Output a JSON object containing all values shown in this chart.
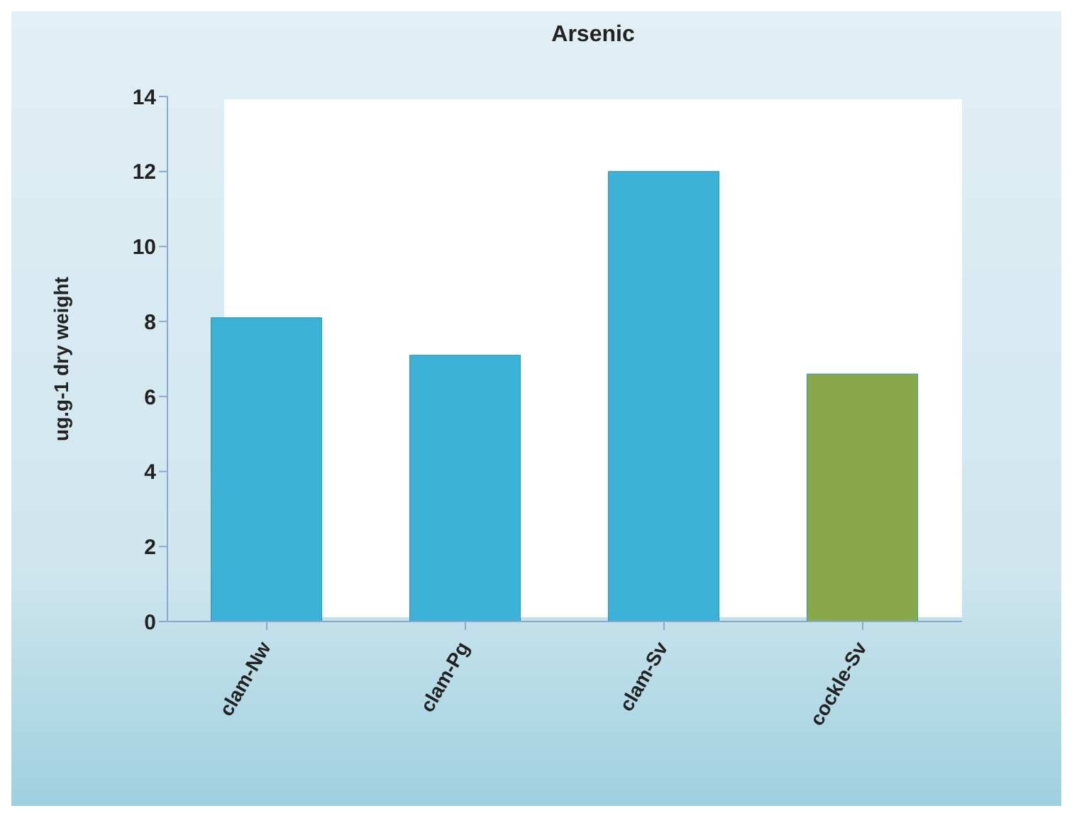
{
  "chart_data": {
    "type": "bar",
    "title": "Arsenic",
    "ylabel": "ug.g-1 dry weight",
    "categories": [
      "clam-Nw",
      "clam-Pg",
      "clam-Sv",
      "cockle-Sv"
    ],
    "values": [
      8.1,
      7.1,
      12.0,
      6.6
    ],
    "colors": [
      "#3cb2d6",
      "#3cb2d6",
      "#3cb2d6",
      "#88a84a"
    ],
    "ylim": [
      0,
      14
    ],
    "yticks": [
      0,
      2,
      4,
      6,
      8,
      10,
      12,
      14
    ],
    "grid": false,
    "legend": false
  }
}
